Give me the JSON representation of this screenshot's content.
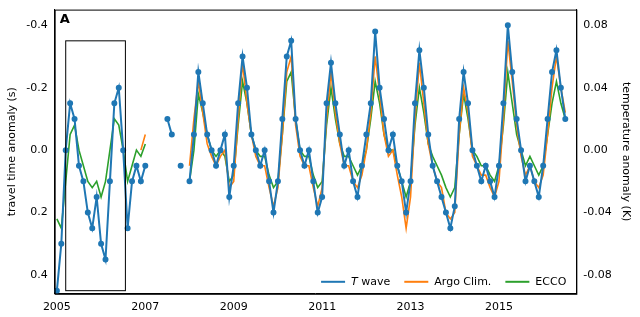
{
  "chart_data": {
    "type": "line",
    "panel_label": "A",
    "y_label": "travel time anomaly (s)",
    "y2_label": "temperature anomaly (K)",
    "xlim": [
      2004.95,
      2016.75
    ],
    "xticks": [
      2005,
      2007,
      2009,
      2011,
      2013,
      2015
    ],
    "ylim": [
      0.46,
      -0.45
    ],
    "yticks": [
      -0.4,
      -0.2,
      {
        "value": 0,
        "label": "0.0"
      },
      0.2,
      0.4
    ],
    "y2lim": [
      -0.092,
      0.09
    ],
    "y2ticks": [
      -0.08,
      -0.04,
      {
        "value": 0,
        "label": "0.00"
      },
      0.04,
      0.08
    ],
    "grid": false,
    "legend": "lower right",
    "highlight_box": {
      "x": [
        2005.2,
        2006.55
      ],
      "y": [
        0.45,
        -0.35
      ]
    },
    "x": [
      2005,
      2005.1,
      2005.2,
      2005.3,
      2005.4,
      2005.5,
      2005.6,
      2005.7,
      2005.8,
      2005.9,
      2006,
      2006.1,
      2006.2,
      2006.3,
      2006.4,
      2006.5,
      2006.6,
      2006.7,
      2006.8,
      2006.9,
      2007,
      2007.1,
      2007.2,
      2007.3,
      2007.4,
      2007.5,
      2007.6,
      2007.7,
      2007.8,
      2007.9,
      2008,
      2008.1,
      2008.2,
      2008.3,
      2008.4,
      2008.5,
      2008.6,
      2008.7,
      2008.8,
      2008.9,
      2009,
      2009.1,
      2009.2,
      2009.3,
      2009.4,
      2009.5,
      2009.6,
      2009.7,
      2009.8,
      2009.9,
      2010,
      2010.1,
      2010.2,
      2010.3,
      2010.4,
      2010.5,
      2010.6,
      2010.7,
      2010.8,
      2010.9,
      2011,
      2011.1,
      2011.2,
      2011.3,
      2011.4,
      2011.5,
      2011.6,
      2011.7,
      2011.8,
      2011.9,
      2012,
      2012.1,
      2012.2,
      2012.3,
      2012.4,
      2012.5,
      2012.6,
      2012.7,
      2012.8,
      2012.9,
      2013,
      2013.1,
      2013.2,
      2013.3,
      2013.4,
      2013.5,
      2013.6,
      2013.7,
      2013.8,
      2013.9,
      2014,
      2014.1,
      2014.2,
      2014.3,
      2014.4,
      2014.5,
      2014.6,
      2014.7,
      2014.8,
      2014.9,
      2015,
      2015.1,
      2015.2,
      2015.3,
      2015.4,
      2015.5,
      2015.6,
      2015.7,
      2015.8,
      2015.9,
      2016,
      2016.1,
      2016.2,
      2016.3,
      2016.4,
      2016.5
    ],
    "series": [
      {
        "name": "T wave",
        "color": "#1f77b4",
        "marker": "circle",
        "line_style": "solid",
        "values": [
          0.45,
          0.3,
          0.0,
          -0.15,
          -0.1,
          0.05,
          0.1,
          0.2,
          0.25,
          0.15,
          0.3,
          0.35,
          0.1,
          -0.15,
          -0.2,
          0.0,
          0.25,
          0.1,
          0.05,
          0.1,
          0.05,
          null,
          null,
          null,
          null,
          -0.1,
          -0.05,
          null,
          0.05,
          null,
          0.1,
          -0.05,
          -0.25,
          -0.15,
          -0.05,
          0.0,
          0.05,
          0.0,
          -0.05,
          0.15,
          0.05,
          -0.15,
          -0.3,
          -0.2,
          -0.05,
          0.0,
          0.05,
          0.0,
          0.1,
          0.2,
          0.1,
          -0.1,
          -0.3,
          -0.35,
          -0.1,
          0.0,
          0.05,
          0.0,
          0.1,
          0.2,
          0.15,
          -0.15,
          -0.28,
          -0.15,
          -0.05,
          0.05,
          0.0,
          0.1,
          0.15,
          0.05,
          -0.05,
          -0.15,
          -0.38,
          -0.2,
          -0.1,
          0.0,
          -0.05,
          0.05,
          0.1,
          0.2,
          0.1,
          -0.15,
          -0.32,
          -0.2,
          -0.05,
          0.05,
          0.1,
          0.15,
          0.2,
          0.25,
          0.18,
          -0.1,
          -0.25,
          -0.15,
          0.0,
          0.05,
          0.1,
          0.05,
          0.1,
          0.15,
          0.05,
          -0.15,
          -0.4,
          -0.25,
          -0.1,
          0.0,
          0.1,
          0.05,
          0.1,
          0.15,
          0.05,
          -0.1,
          -0.25,
          -0.32,
          -0.2,
          -0.1
        ]
      },
      {
        "name": "Argo Clim.",
        "color": "#ff7f0e",
        "marker": "none",
        "line_style": "solid",
        "values": [
          null,
          null,
          null,
          null,
          null,
          null,
          null,
          null,
          null,
          null,
          null,
          null,
          null,
          null,
          null,
          null,
          null,
          null,
          null,
          0.0,
          -0.05,
          null,
          null,
          null,
          null,
          null,
          null,
          null,
          null,
          null,
          0.05,
          -0.1,
          -0.22,
          -0.12,
          -0.02,
          0.02,
          0.05,
          0.02,
          0.0,
          0.12,
          0.1,
          -0.1,
          -0.28,
          -0.15,
          -0.05,
          0.02,
          0.05,
          0.05,
          0.12,
          0.18,
          0.12,
          -0.05,
          -0.25,
          -0.3,
          -0.08,
          0.02,
          0.05,
          0.05,
          0.12,
          0.18,
          0.12,
          -0.1,
          -0.25,
          -0.12,
          -0.02,
          0.05,
          0.05,
          0.1,
          0.12,
          0.08,
          0.0,
          -0.12,
          -0.3,
          -0.18,
          -0.05,
          0.02,
          0.0,
          0.08,
          0.15,
          0.25,
          0.15,
          -0.1,
          -0.28,
          -0.15,
          -0.02,
          0.05,
          0.1,
          0.12,
          0.2,
          0.22,
          0.2,
          -0.05,
          -0.2,
          -0.12,
          0.02,
          0.05,
          0.08,
          0.08,
          0.12,
          0.15,
          0.1,
          -0.1,
          -0.35,
          -0.22,
          -0.08,
          0.02,
          0.08,
          0.05,
          0.1,
          0.12,
          0.08,
          -0.05,
          -0.2,
          -0.3,
          -0.2,
          -0.12
        ]
      },
      {
        "name": "ECCO",
        "color": "#2ca02c",
        "marker": "none",
        "line_style": "solid",
        "values": [
          0.22,
          0.25,
          0.1,
          -0.05,
          -0.08,
          0.0,
          0.05,
          0.1,
          0.12,
          0.1,
          0.15,
          0.1,
          0.0,
          -0.1,
          -0.08,
          0.0,
          0.1,
          0.05,
          0.0,
          0.02,
          -0.02,
          null,
          null,
          null,
          null,
          null,
          null,
          null,
          null,
          null,
          0.1,
          0.0,
          -0.18,
          -0.12,
          -0.05,
          0.0,
          0.02,
          0.0,
          0.02,
          0.1,
          0.08,
          -0.08,
          -0.22,
          -0.15,
          -0.05,
          0.0,
          0.02,
          0.02,
          0.08,
          0.12,
          0.1,
          -0.05,
          -0.22,
          -0.25,
          -0.1,
          0.0,
          0.02,
          0.02,
          0.08,
          0.12,
          0.1,
          -0.08,
          -0.2,
          -0.1,
          -0.02,
          0.02,
          0.02,
          0.05,
          0.08,
          0.05,
          0.0,
          -0.1,
          -0.22,
          -0.15,
          -0.05,
          0.0,
          0.0,
          0.05,
          0.1,
          0.15,
          0.1,
          -0.08,
          -0.2,
          -0.12,
          -0.02,
          0.02,
          0.05,
          0.08,
          0.12,
          0.15,
          0.12,
          -0.05,
          -0.18,
          -0.1,
          0.0,
          0.02,
          0.05,
          0.05,
          0.08,
          0.1,
          0.05,
          -0.08,
          -0.25,
          -0.15,
          -0.05,
          0.0,
          0.05,
          0.02,
          0.05,
          0.08,
          0.05,
          -0.05,
          -0.15,
          -0.22,
          -0.15,
          -0.1
        ]
      }
    ]
  }
}
